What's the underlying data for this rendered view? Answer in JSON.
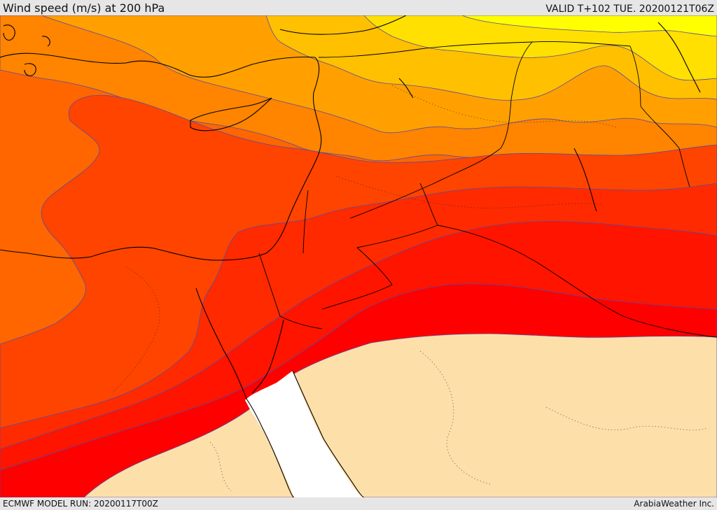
{
  "header": {
    "title": "Wind speed (m/s) at 200 hPa",
    "valid": "VALID T+102 TUE. 20200121T06Z"
  },
  "footer": {
    "model_run": "ECMWF MODEL RUN: 20200117T00Z",
    "credit": "ArabiaWeather Inc."
  },
  "map": {
    "region": "Eastern Mediterranean, Levant, Egypt, Arabia",
    "palette": {
      "yellow": "#ffff00",
      "gold": "#ffe000",
      "amber": "#ffc000",
      "orange_light": "#ffa000",
      "orange": "#ff8400",
      "orange_dark": "#ff6600",
      "red_orange": "#ff4400",
      "red_light": "#ff2a00",
      "red": "#ff1400",
      "red_deep": "#ff0000",
      "below_threshold": "#fddfaa",
      "sea_masked": "#ffffff",
      "contour_line": "#5a4aa0",
      "coastline": "#000000",
      "border_line": "#000000"
    }
  }
}
